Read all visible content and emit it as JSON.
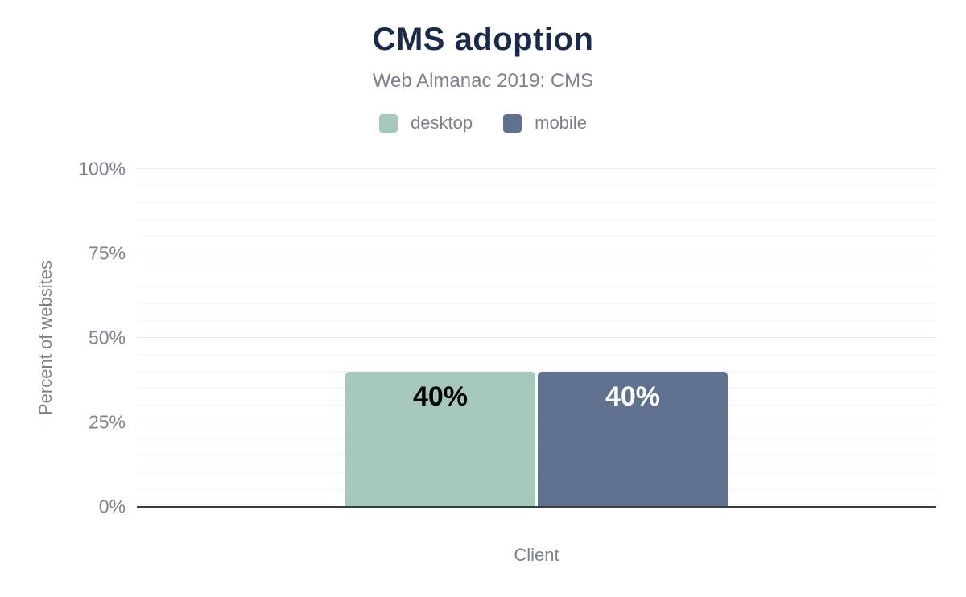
{
  "chart_data": {
    "type": "bar",
    "title": "CMS adoption",
    "subtitle": "Web Almanac 2019: CMS",
    "categories": [
      "Client"
    ],
    "series": [
      {
        "name": "desktop",
        "values": [
          40
        ],
        "value_labels": [
          "40%"
        ],
        "color": "#a5c8b9",
        "label_color": "#000000"
      },
      {
        "name": "mobile",
        "values": [
          40
        ],
        "value_labels": [
          "40%"
        ],
        "color": "#5f718e",
        "label_color": "#ffffff"
      }
    ],
    "xlabel": "Client",
    "ylabel": "Percent of websites",
    "ylim": [
      0,
      100
    ],
    "ytick_labels": [
      "0%",
      "25%",
      "50%",
      "75%",
      "100%"
    ],
    "ytick_step_major": 25,
    "ytick_step_minor": 5,
    "grid": true,
    "legend_position": "top"
  },
  "colors": {
    "title_text": "#1a2b49",
    "muted_text": "#7b828c",
    "axis_line": "#3a3d40",
    "grid_major": "#e8e9eb",
    "grid_minor": "#f4f5f6",
    "background": "#ffffff"
  }
}
